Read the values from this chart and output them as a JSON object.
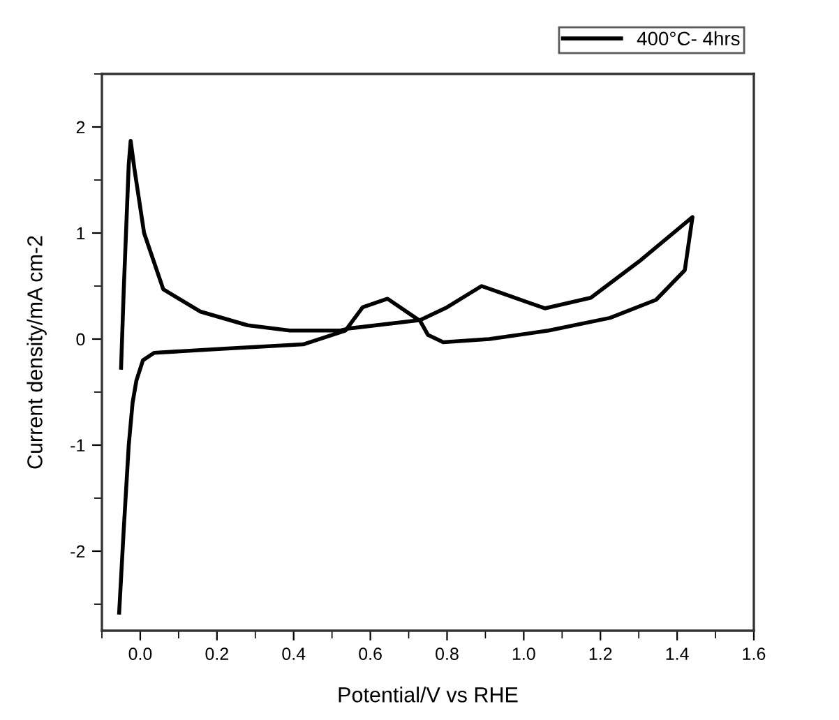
{
  "chart_data": {
    "type": "line",
    "xlabel": "Potential/V vs RHE",
    "ylabel": "Current density/mA cm-2",
    "xlim": [
      -0.1,
      1.6
    ],
    "xticks": [
      {
        "value": 0,
        "label": "0.0"
      },
      0.2,
      0.4,
      0.6,
      0.8,
      {
        "value": 1,
        "label": "1.0"
      },
      1.2,
      1.4,
      1.6
    ],
    "ylim": [
      -2.75,
      2.5
    ],
    "yticks": [
      -2,
      -1,
      0,
      1,
      2
    ],
    "grid": false,
    "legend": "top right",
    "marker": "none",
    "line_style": "solid",
    "series": [
      {
        "name": "400°C- 4hrs",
        "color": "#000000",
        "x": [
          -0.05,
          -0.043,
          -0.03,
          -0.025,
          -0.015,
          0.01,
          0.06,
          0.156,
          0.28,
          0.39,
          0.52,
          0.545,
          0.73,
          0.8,
          0.89,
          0.945,
          1.055,
          1.175,
          1.3,
          1.44,
          1.42,
          1.345,
          1.225,
          1.065,
          0.91,
          0.79,
          0.75,
          0.73,
          0.645,
          0.58,
          0.535,
          0.425,
          0.22,
          0.036,
          0.007,
          -0.01,
          -0.02,
          -0.03,
          -0.043,
          -0.055
        ],
        "values": [
          -0.27,
          0.47,
          1.65,
          1.87,
          1.6,
          1.0,
          0.47,
          0.26,
          0.13,
          0.08,
          0.08,
          0.1,
          0.18,
          0.3,
          0.5,
          0.43,
          0.29,
          0.39,
          0.73,
          1.15,
          0.65,
          0.37,
          0.2,
          0.08,
          0.0,
          -0.03,
          0.04,
          0.17,
          0.38,
          0.3,
          0.08,
          -0.05,
          -0.09,
          -0.13,
          -0.2,
          -0.39,
          -0.6,
          -1.0,
          -1.79,
          -2.58
        ]
      }
    ]
  }
}
